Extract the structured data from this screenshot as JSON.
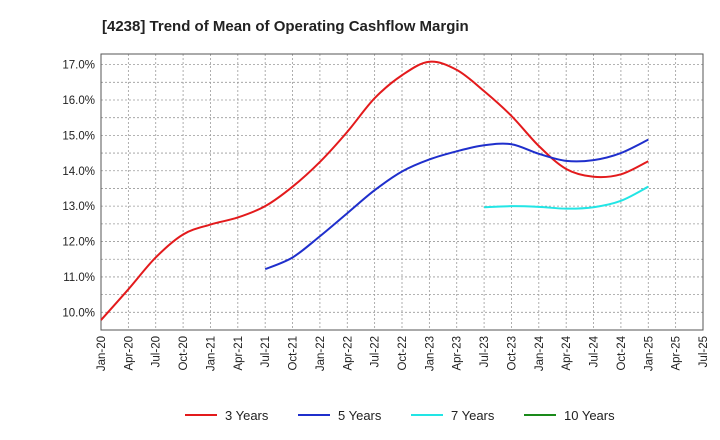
{
  "chart_data": {
    "type": "line",
    "title": "[4238]  Trend of Mean of Operating Cashflow Margin",
    "xlabel": "",
    "ylabel": "",
    "ylim": [
      9.5,
      17.3
    ],
    "y_ticks": [
      "10.0%",
      "11.0%",
      "12.0%",
      "13.0%",
      "14.0%",
      "15.0%",
      "16.0%",
      "17.0%"
    ],
    "y_tick_values": [
      10,
      11,
      12,
      13,
      14,
      15,
      16,
      17
    ],
    "x_ticks": [
      "Jan-20",
      "Apr-20",
      "Jul-20",
      "Oct-20",
      "Jan-21",
      "Apr-21",
      "Jul-21",
      "Oct-21",
      "Jan-22",
      "Apr-22",
      "Jul-22",
      "Oct-22",
      "Jan-23",
      "Apr-23",
      "Jul-23",
      "Oct-23",
      "Jan-24",
      "Apr-24",
      "Jul-24",
      "Oct-24",
      "Jan-25",
      "Apr-25",
      "Jul-25"
    ],
    "grid": true,
    "legend_position": "bottom",
    "series": [
      {
        "name": "3 Years",
        "color": "#e31a1c",
        "x": [
          "Jan-20",
          "Apr-20",
          "Jul-20",
          "Oct-20",
          "Jan-21",
          "Apr-21",
          "Jul-21",
          "Oct-21",
          "Jan-22",
          "Apr-22",
          "Jul-22",
          "Oct-22",
          "Jan-23",
          "Apr-23",
          "Jul-23",
          "Oct-23",
          "Jan-24",
          "Apr-24",
          "Jul-24",
          "Oct-24",
          "Jan-25"
        ],
        "values": [
          9.78,
          10.65,
          11.55,
          12.2,
          12.48,
          12.68,
          13.0,
          13.55,
          14.25,
          15.1,
          16.05,
          16.7,
          17.08,
          16.85,
          16.25,
          15.55,
          14.7,
          14.05,
          13.83,
          13.9,
          14.27
        ]
      },
      {
        "name": "5 Years",
        "color": "#1f2fcc",
        "x": [
          "Jul-21",
          "Oct-21",
          "Jan-22",
          "Apr-22",
          "Jul-22",
          "Oct-22",
          "Jan-23",
          "Apr-23",
          "Jul-23",
          "Oct-23",
          "Jan-24",
          "Apr-24",
          "Jul-24",
          "Oct-24",
          "Jan-25"
        ],
        "values": [
          11.22,
          11.55,
          12.15,
          12.8,
          13.45,
          13.98,
          14.32,
          14.55,
          14.72,
          14.75,
          14.48,
          14.28,
          14.3,
          14.5,
          14.88
        ]
      },
      {
        "name": "7 Years",
        "color": "#22e5e5",
        "x": [
          "Jul-23",
          "Oct-23",
          "Jan-24",
          "Apr-24",
          "Jul-24",
          "Oct-24",
          "Jan-25"
        ],
        "values": [
          12.97,
          13.0,
          12.98,
          12.93,
          12.97,
          13.15,
          13.55
        ]
      },
      {
        "name": "10 Years",
        "color": "#1a8a1a",
        "x": [],
        "values": []
      }
    ]
  }
}
